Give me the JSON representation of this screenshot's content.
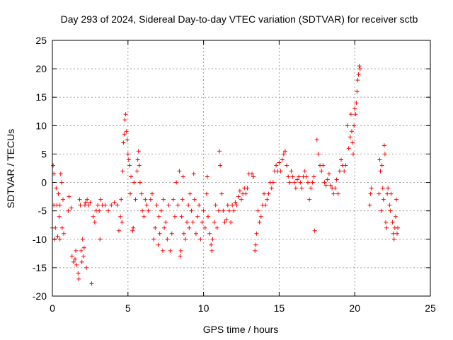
{
  "chart_data": {
    "type": "scatter",
    "title": "Day 293 of 2024, Sidereal Day-to-day VTEC variation (SDTVAR) for receiver sctb",
    "xlabel": "GPS time / hours",
    "ylabel": "SDTVAR / TECUs",
    "xlim": [
      0,
      25
    ],
    "ylim": [
      -20,
      25
    ],
    "xticks": [
      0,
      5,
      10,
      15,
      20,
      25
    ],
    "xtick_labels": [
      "0",
      "5",
      "10",
      "15",
      "20",
      "25"
    ],
    "yticks": [
      -20,
      -15,
      -10,
      -5,
      0,
      5,
      10,
      15,
      20,
      25
    ],
    "ytick_labels": [
      "-20",
      "-15",
      "-10",
      "-5",
      "0",
      "5",
      "10",
      "15",
      "20",
      "25"
    ],
    "grid": true,
    "marker": "+",
    "color": "#ff0000",
    "series": [
      {
        "name": "SDTVAR",
        "points": [
          [
            0.0,
            -8
          ],
          [
            0.05,
            3
          ],
          [
            0.1,
            1.5
          ],
          [
            0.1,
            -4
          ],
          [
            0.15,
            -10
          ],
          [
            0.2,
            -8
          ],
          [
            0.25,
            -1
          ],
          [
            0.3,
            -4
          ],
          [
            0.35,
            -9.5
          ],
          [
            0.4,
            -2
          ],
          [
            0.45,
            -6
          ],
          [
            0.5,
            -10
          ],
          [
            0.5,
            -4
          ],
          [
            0.55,
            1.5
          ],
          [
            0.6,
            0
          ],
          [
            0.65,
            -8
          ],
          [
            0.7,
            -3
          ],
          [
            0.75,
            -9
          ],
          [
            1.05,
            -5
          ],
          [
            1.1,
            -2.5
          ],
          [
            1.25,
            -4.5
          ],
          [
            1.3,
            -13
          ],
          [
            1.4,
            -14
          ],
          [
            1.5,
            -13.5
          ],
          [
            1.55,
            -12
          ],
          [
            1.6,
            -14.5
          ],
          [
            1.7,
            -16
          ],
          [
            1.75,
            -17
          ],
          [
            1.8,
            -3
          ],
          [
            1.85,
            -4
          ],
          [
            1.9,
            -12
          ],
          [
            1.95,
            -14
          ],
          [
            2.0,
            -10
          ],
          [
            2.05,
            -13
          ],
          [
            2.1,
            -11.5
          ],
          [
            2.15,
            -4
          ],
          [
            2.2,
            -3.5
          ],
          [
            2.25,
            -15
          ],
          [
            2.3,
            -3
          ],
          [
            2.4,
            -4
          ],
          [
            2.5,
            -3.5
          ],
          [
            2.6,
            -17.8
          ],
          [
            2.7,
            -6
          ],
          [
            2.8,
            -7
          ],
          [
            2.9,
            -5
          ],
          [
            3.0,
            -4
          ],
          [
            3.1,
            -5
          ],
          [
            3.15,
            -10
          ],
          [
            3.2,
            -3
          ],
          [
            3.3,
            -4
          ],
          [
            3.5,
            -4
          ],
          [
            3.7,
            -5
          ],
          [
            3.9,
            -4
          ],
          [
            4.1,
            -3.5
          ],
          [
            4.3,
            -4
          ],
          [
            4.4,
            -8.5
          ],
          [
            4.5,
            -6
          ],
          [
            4.55,
            -3
          ],
          [
            4.6,
            -7
          ],
          [
            4.65,
            2
          ],
          [
            4.7,
            7
          ],
          [
            4.75,
            8.5
          ],
          [
            4.8,
            11
          ],
          [
            4.85,
            12
          ],
          [
            4.9,
            9
          ],
          [
            4.95,
            7.5
          ],
          [
            5.0,
            5
          ],
          [
            5.05,
            4
          ],
          [
            5.1,
            3
          ],
          [
            5.15,
            -2
          ],
          [
            5.2,
            1
          ],
          [
            5.3,
            -8.5
          ],
          [
            5.35,
            -8
          ],
          [
            5.4,
            0
          ],
          [
            5.5,
            -3
          ],
          [
            5.6,
            2
          ],
          [
            5.65,
            4
          ],
          [
            5.7,
            5.5
          ],
          [
            5.75,
            3
          ],
          [
            5.8,
            0
          ],
          [
            5.9,
            -2
          ],
          [
            5.95,
            -5
          ],
          [
            6.05,
            -6
          ],
          [
            6.15,
            -3
          ],
          [
            6.25,
            -4
          ],
          [
            6.35,
            -5
          ],
          [
            6.5,
            -3
          ],
          [
            6.6,
            -2
          ],
          [
            6.7,
            -10
          ],
          [
            6.8,
            -8
          ],
          [
            6.9,
            -4
          ],
          [
            7.0,
            -11
          ],
          [
            7.05,
            -6
          ],
          [
            7.1,
            -9
          ],
          [
            7.2,
            -5
          ],
          [
            7.3,
            -12
          ],
          [
            7.35,
            -3
          ],
          [
            7.4,
            -8
          ],
          [
            7.5,
            -7
          ],
          [
            7.6,
            -10
          ],
          [
            7.7,
            -4
          ],
          [
            7.8,
            -12
          ],
          [
            7.9,
            -9
          ],
          [
            8.0,
            -3
          ],
          [
            8.1,
            -6
          ],
          [
            8.2,
            0
          ],
          [
            8.3,
            -4
          ],
          [
            8.4,
            2
          ],
          [
            8.45,
            -13
          ],
          [
            8.5,
            -12
          ],
          [
            8.55,
            -6
          ],
          [
            8.6,
            -3
          ],
          [
            8.65,
            1
          ],
          [
            8.7,
            -9
          ],
          [
            8.8,
            -10
          ],
          [
            8.9,
            -7
          ],
          [
            9.0,
            -4
          ],
          [
            9.05,
            -8
          ],
          [
            9.1,
            -2
          ],
          [
            9.2,
            -5
          ],
          [
            9.3,
            -7
          ],
          [
            9.35,
            1.5
          ],
          [
            9.4,
            -3
          ],
          [
            9.5,
            -9
          ],
          [
            9.6,
            -6
          ],
          [
            9.7,
            -4
          ],
          [
            9.8,
            -10
          ],
          [
            9.9,
            -7
          ],
          [
            10.0,
            -5
          ],
          [
            10.1,
            -8
          ],
          [
            10.2,
            -2
          ],
          [
            10.25,
            1
          ],
          [
            10.3,
            -6
          ],
          [
            10.4,
            -9
          ],
          [
            10.5,
            -11
          ],
          [
            10.55,
            -12
          ],
          [
            10.6,
            -10
          ],
          [
            10.7,
            -7
          ],
          [
            10.8,
            -4
          ],
          [
            10.9,
            -8
          ],
          [
            11.0,
            -5
          ],
          [
            11.05,
            5.5
          ],
          [
            11.1,
            3
          ],
          [
            11.2,
            -2
          ],
          [
            11.3,
            -5
          ],
          [
            11.4,
            -7
          ],
          [
            11.5,
            -6.5
          ],
          [
            11.6,
            -4
          ],
          [
            11.7,
            -5
          ],
          [
            11.8,
            -7
          ],
          [
            11.9,
            -4
          ],
          [
            12.0,
            -5
          ],
          [
            12.1,
            -3.5
          ],
          [
            12.2,
            -4
          ],
          [
            12.3,
            -2.5
          ],
          [
            12.4,
            -1.5
          ],
          [
            12.5,
            -3
          ],
          [
            12.6,
            -2
          ],
          [
            12.7,
            -1
          ],
          [
            12.8,
            -2
          ],
          [
            12.9,
            -1
          ],
          [
            13.0,
            1.5
          ],
          [
            13.2,
            1.5
          ],
          [
            13.3,
            1
          ],
          [
            13.4,
            -12
          ],
          [
            13.45,
            -11
          ],
          [
            13.5,
            -9
          ],
          [
            13.6,
            -5
          ],
          [
            13.7,
            -7
          ],
          [
            13.8,
            -6
          ],
          [
            13.9,
            -4
          ],
          [
            14.0,
            -2
          ],
          [
            14.1,
            -4
          ],
          [
            14.2,
            -3
          ],
          [
            14.3,
            -2
          ],
          [
            14.4,
            0
          ],
          [
            14.5,
            -1
          ],
          [
            14.6,
            0
          ],
          [
            14.7,
            2
          ],
          [
            14.8,
            3
          ],
          [
            14.9,
            2
          ],
          [
            15.0,
            3.5
          ],
          [
            15.1,
            2
          ],
          [
            15.2,
            4
          ],
          [
            15.3,
            5
          ],
          [
            15.4,
            5.5
          ],
          [
            15.5,
            3
          ],
          [
            15.6,
            1
          ],
          [
            15.7,
            0
          ],
          [
            15.8,
            2
          ],
          [
            15.9,
            1
          ],
          [
            16.0,
            0
          ],
          [
            16.1,
            -1
          ],
          [
            16.2,
            0.5
          ],
          [
            16.3,
            1
          ],
          [
            16.4,
            0
          ],
          [
            16.5,
            -1
          ],
          [
            16.6,
            1
          ],
          [
            16.7,
            2
          ],
          [
            16.8,
            1
          ],
          [
            16.9,
            0
          ],
          [
            17.0,
            -3
          ],
          [
            17.1,
            -1
          ],
          [
            17.2,
            0
          ],
          [
            17.3,
            1
          ],
          [
            17.35,
            -8.5
          ],
          [
            17.5,
            7.5
          ],
          [
            17.6,
            5
          ],
          [
            17.7,
            3
          ],
          [
            17.8,
            2
          ],
          [
            17.9,
            3
          ],
          [
            18.0,
            0
          ],
          [
            18.1,
            -0.5
          ],
          [
            18.2,
            0.5
          ],
          [
            18.3,
            1.5
          ],
          [
            18.4,
            -0.5
          ],
          [
            18.5,
            -1
          ],
          [
            18.6,
            -2
          ],
          [
            18.7,
            -1
          ],
          [
            18.8,
            0.5
          ],
          [
            18.9,
            -2
          ],
          [
            19.0,
            2
          ],
          [
            19.1,
            4
          ],
          [
            19.2,
            3
          ],
          [
            19.3,
            2
          ],
          [
            19.4,
            3
          ],
          [
            19.5,
            10
          ],
          [
            19.6,
            6
          ],
          [
            19.7,
            8
          ],
          [
            19.75,
            12
          ],
          [
            19.8,
            9
          ],
          [
            19.85,
            7
          ],
          [
            19.9,
            5
          ],
          [
            19.95,
            10
          ],
          [
            20.0,
            13
          ],
          [
            20.05,
            12
          ],
          [
            20.1,
            14
          ],
          [
            20.15,
            16
          ],
          [
            20.2,
            18
          ],
          [
            20.25,
            19
          ],
          [
            20.3,
            20.5
          ],
          [
            20.35,
            20
          ],
          [
            21.0,
            -4
          ],
          [
            21.05,
            -2
          ],
          [
            21.1,
            -1
          ],
          [
            21.6,
            -2
          ],
          [
            21.65,
            4
          ],
          [
            21.7,
            2
          ],
          [
            21.75,
            -5
          ],
          [
            21.8,
            3
          ],
          [
            21.85,
            -1
          ],
          [
            21.9,
            -3
          ],
          [
            21.95,
            6.5
          ],
          [
            22.0,
            5
          ],
          [
            22.05,
            -7
          ],
          [
            22.1,
            -8
          ],
          [
            22.15,
            -2
          ],
          [
            22.2,
            -1
          ],
          [
            22.3,
            -4
          ],
          [
            22.35,
            -5
          ],
          [
            22.4,
            -2
          ],
          [
            22.5,
            -7
          ],
          [
            22.55,
            -9
          ],
          [
            22.6,
            -10
          ],
          [
            22.65,
            -8
          ],
          [
            22.7,
            -6
          ],
          [
            22.75,
            -3
          ],
          [
            22.8,
            -9
          ],
          [
            22.85,
            -8
          ]
        ]
      }
    ]
  }
}
